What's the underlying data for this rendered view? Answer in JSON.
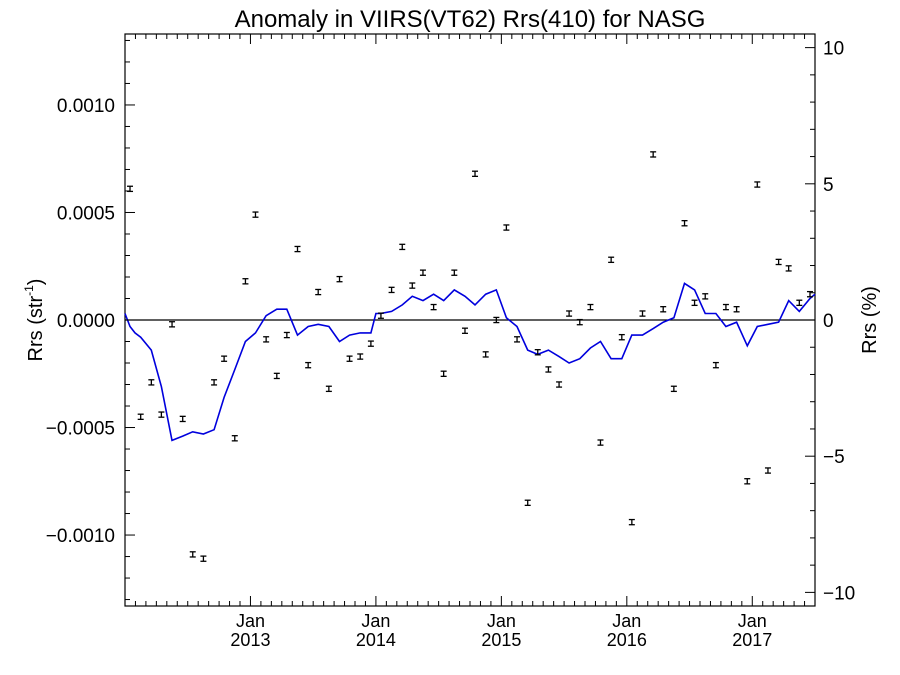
{
  "chart_data": {
    "type": "scatter",
    "title": "Anomaly in VIIRS(VT62) Rrs(410) for NASG",
    "ylabel_left_main": "Rrs (str",
    "ylabel_left_sup": "-1",
    "ylabel_left_end": ")",
    "ylabel_right": "Rrs (%)",
    "ylim_left": [
      -0.00133,
      0.00133
    ],
    "ylim_right": [
      -10.5,
      10.5
    ],
    "xlim": [
      2012.0,
      2017.5
    ],
    "left_ticks": [
      {
        "v": 0.001,
        "label": "0.0010"
      },
      {
        "v": 0.0005,
        "label": "0.0005"
      },
      {
        "v": 0.0,
        "label": "0.0000"
      },
      {
        "v": -0.0005,
        "label": "−0.0005"
      },
      {
        "v": -0.001,
        "label": "−0.0010"
      }
    ],
    "right_ticks": [
      {
        "v": 10,
        "label": "10"
      },
      {
        "v": 5,
        "label": "5"
      },
      {
        "v": 0,
        "label": "0"
      },
      {
        "v": -5,
        "label": "−5"
      },
      {
        "v": -10,
        "label": "−10"
      }
    ],
    "x_ticks": [
      {
        "v": 2013.0,
        "month": "Jan",
        "year": "2013"
      },
      {
        "v": 2014.0,
        "month": "Jan",
        "year": "2014"
      },
      {
        "v": 2015.0,
        "month": "Jan",
        "year": "2015"
      },
      {
        "v": 2016.0,
        "month": "Jan",
        "year": "2016"
      },
      {
        "v": 2017.0,
        "month": "Jan",
        "year": "2017"
      }
    ],
    "colors": {
      "line": "#0000dd",
      "points": "#000000",
      "axis": "#000000"
    },
    "series": [
      {
        "type": "errorbar",
        "x": [
          2012.04,
          2012.125,
          2012.21,
          2012.29,
          2012.375,
          2012.46,
          2012.54,
          2012.625,
          2012.71,
          2012.79,
          2012.875,
          2012.96,
          2013.04,
          2013.125,
          2013.21,
          2013.29,
          2013.375,
          2013.46,
          2013.54,
          2013.625,
          2013.71,
          2013.79,
          2013.875,
          2013.96,
          2014.04,
          2014.125,
          2014.21,
          2014.29,
          2014.375,
          2014.46,
          2014.54,
          2014.625,
          2014.71,
          2014.79,
          2014.875,
          2014.96,
          2015.04,
          2015.125,
          2015.21,
          2015.29,
          2015.375,
          2015.46,
          2015.54,
          2015.625,
          2015.71,
          2015.79,
          2015.875,
          2015.96,
          2016.04,
          2016.125,
          2016.21,
          2016.29,
          2016.375,
          2016.46,
          2016.54,
          2016.625,
          2016.71,
          2016.79,
          2016.875,
          2016.96,
          2017.04,
          2017.125,
          2017.21,
          2017.29,
          2017.375,
          2017.46
        ],
        "y": [
          0.00061,
          -0.00045,
          -0.00029,
          -0.00044,
          -2e-05,
          -0.00046,
          -0.00109,
          -0.00111,
          -0.00029,
          -0.00018,
          -0.00055,
          0.00018,
          0.00049,
          -9e-05,
          -0.00026,
          -7e-05,
          0.00033,
          -0.00021,
          0.00013,
          -0.00032,
          0.00019,
          -0.00018,
          -0.00017,
          -0.00011,
          2e-05,
          0.00014,
          0.00034,
          0.00016,
          0.00022,
          6e-05,
          -0.00025,
          0.00022,
          -5e-05,
          0.00068,
          -0.00016,
          0.0,
          0.00043,
          -9e-05,
          -0.00085,
          -0.00015,
          -0.00023,
          -0.0003,
          3e-05,
          -1e-05,
          6e-05,
          -0.00057,
          0.00028,
          -8e-05,
          -0.00094,
          3e-05,
          0.00077,
          5e-05,
          -0.00032,
          0.00045,
          8e-05,
          0.00011,
          -0.00021,
          6e-05,
          5e-05,
          -0.00075,
          0.00063,
          -0.0007,
          0.00027,
          0.00024,
          8e-05,
          0.00012
        ],
        "err": 1.2e-05
      },
      {
        "type": "line",
        "x": [
          2012.0,
          2012.04,
          2012.08,
          2012.125,
          2012.21,
          2012.29,
          2012.375,
          2012.46,
          2012.54,
          2012.625,
          2012.71,
          2012.79,
          2012.875,
          2012.96,
          2013.04,
          2013.125,
          2013.21,
          2013.29,
          2013.375,
          2013.46,
          2013.54,
          2013.625,
          2013.71,
          2013.79,
          2013.875,
          2013.96,
          2014.0,
          2014.04,
          2014.125,
          2014.21,
          2014.29,
          2014.375,
          2014.46,
          2014.54,
          2014.625,
          2014.71,
          2014.79,
          2014.875,
          2014.96,
          2015.04,
          2015.125,
          2015.21,
          2015.29,
          2015.375,
          2015.46,
          2015.54,
          2015.625,
          2015.71,
          2015.79,
          2015.875,
          2015.96,
          2016.04,
          2016.125,
          2016.21,
          2016.29,
          2016.375,
          2016.46,
          2016.54,
          2016.625,
          2016.71,
          2016.79,
          2016.875,
          2016.96,
          2017.04,
          2017.125,
          2017.21,
          2017.29,
          2017.375,
          2017.46,
          2017.5
        ],
        "y": [
          3e-05,
          -3e-05,
          -6e-05,
          -8e-05,
          -0.00014,
          -0.00031,
          -0.00056,
          -0.00054,
          -0.00052,
          -0.00053,
          -0.00051,
          -0.00036,
          -0.00023,
          -0.0001,
          -6e-05,
          2e-05,
          5e-05,
          5e-05,
          -7e-05,
          -3e-05,
          -2e-05,
          -3e-05,
          -0.0001,
          -7e-05,
          -6e-05,
          -6e-05,
          3e-05,
          3e-05,
          4e-05,
          7e-05,
          0.00011,
          9e-05,
          0.00012,
          9e-05,
          0.00014,
          0.00011,
          7e-05,
          0.00012,
          0.00014,
          1e-05,
          -3e-05,
          -0.00014,
          -0.00016,
          -0.00014,
          -0.00017,
          -0.0002,
          -0.00018,
          -0.00013,
          -0.0001,
          -0.00018,
          -0.00018,
          -7e-05,
          -7e-05,
          -4e-05,
          -1e-05,
          1e-05,
          0.00017,
          0.00014,
          3e-05,
          3e-05,
          -3e-05,
          -1e-05,
          -0.00012,
          -3e-05,
          -2e-05,
          -1e-05,
          9e-05,
          4e-05,
          0.0001,
          0.00012
        ]
      }
    ]
  }
}
